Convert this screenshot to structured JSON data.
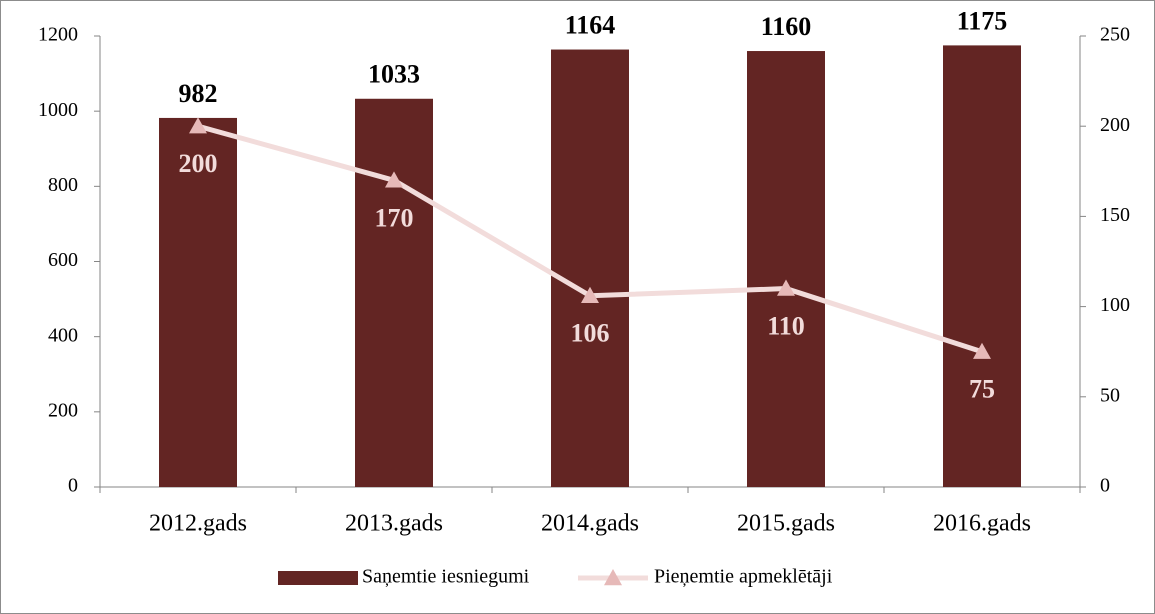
{
  "chart_data": {
    "type": "bar",
    "categories": [
      "2012.gads",
      "2013.gads",
      "2014.gads",
      "2015.gads",
      "2016.gads"
    ],
    "series": [
      {
        "name": "Saņemtie iesniegumi",
        "type": "bar",
        "color": "#632523",
        "values": [
          982,
          1033,
          1164,
          1160,
          1175
        ]
      },
      {
        "name": "Pieņemtie apmeklētāji",
        "type": "line",
        "axis": "y2",
        "color": "#f2dcdb",
        "marker_color": "#e6b9b8",
        "values": [
          200,
          170,
          106,
          110,
          75
        ]
      }
    ],
    "ylim": [
      0,
      1200
    ],
    "yticks": [
      0,
      200,
      400,
      600,
      800,
      1000,
      1200
    ],
    "y2lim": [
      0,
      250
    ],
    "y2ticks": [
      0,
      50,
      100,
      150,
      200,
      250
    ],
    "legend": "bottom"
  }
}
